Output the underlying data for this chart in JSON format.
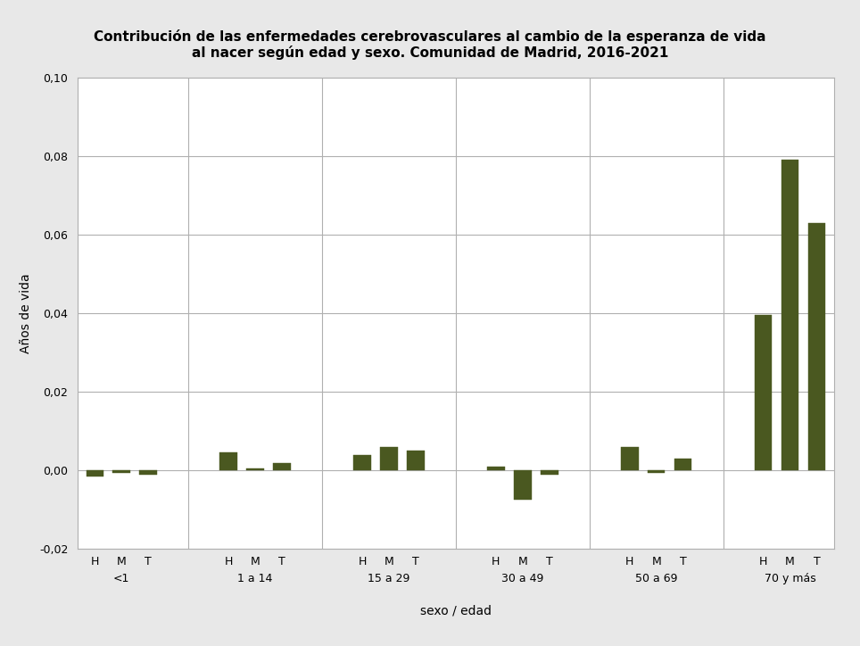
{
  "title_line1": "Contribución de las enfermedades cerebrovasculares al cambio de la esperanza de vida",
  "title_line2": "al nacer según edad y sexo. Comunidad de Madrid, 2016-2021",
  "ylabel": "Años de vida",
  "xlabel": "sexo / edad",
  "bar_color": "#4a5820",
  "background_color": "#e8e8e8",
  "plot_background": "#ffffff",
  "ylim": [
    -0.02,
    0.1
  ],
  "yticks": [
    -0.02,
    0.0,
    0.02,
    0.04,
    0.06,
    0.08,
    0.1
  ],
  "groups": [
    "<1",
    "1 a 14",
    "15 a 29",
    "30 a 49",
    "50 a 69",
    "70 y más"
  ],
  "labels": [
    "H",
    "M",
    "T"
  ],
  "values": [
    [
      -0.0015,
      -0.0005,
      -0.001
    ],
    [
      0.0045,
      0.0005,
      0.002
    ],
    [
      0.004,
      0.006,
      0.005
    ],
    [
      0.001,
      -0.0075,
      -0.001
    ],
    [
      0.006,
      -0.0005,
      0.003
    ],
    [
      0.0395,
      0.079,
      0.063
    ]
  ]
}
